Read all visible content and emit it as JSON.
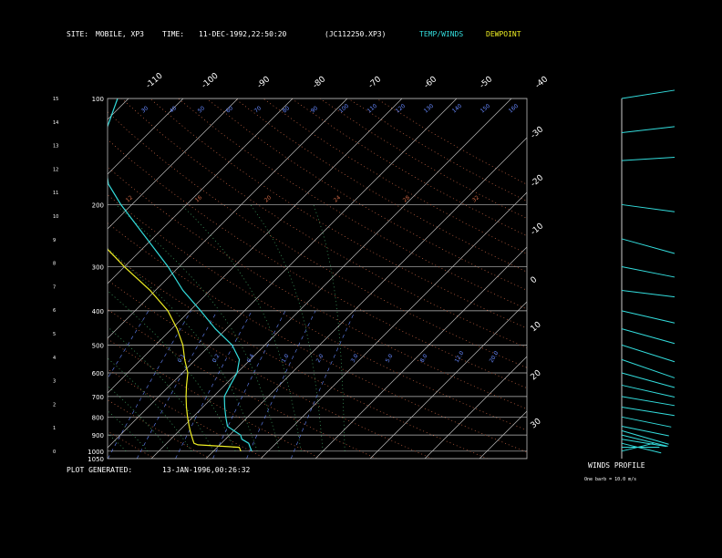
{
  "header": {
    "site_label": "SITE:",
    "site_value": "MOBILE, XP3",
    "time_label": "TIME:",
    "time_value": "11-DEC-1992,22:50:20",
    "file_value": "(JC112250.XP3)",
    "legend_temp": "TEMP/WINDS",
    "legend_dew": "DEWPOINT"
  },
  "footer": {
    "generated_label": "PLOT GENERATED:",
    "generated_value": "13-JAN-1996,00:26:32",
    "winds_title": "WINDS PROFILE",
    "winds_note": "One barb = 10.0 m/s"
  },
  "colors": {
    "temp": "#33dddd",
    "dew": "#eeee22",
    "isobar": "#bbbbbb",
    "isotherm": "#bbbbbb",
    "dry_adiabat": "#cc6644",
    "moist_adiabat": "#44aa66",
    "mixing_ratio": "#6688ff",
    "wind": "#33dddd"
  },
  "chart_data": {
    "type": "skew-t",
    "pressure_levels": [
      1050,
      1000,
      900,
      800,
      700,
      600,
      500,
      400,
      300,
      200,
      100
    ],
    "left_ticks_km": [
      0,
      1,
      2,
      3,
      4,
      5,
      6,
      7,
      8,
      9,
      10,
      11,
      12,
      13,
      14,
      15
    ],
    "top_temperature_labels": [
      "-110",
      "-100",
      "-90",
      "-80",
      "-70",
      "-60",
      "-50",
      "-40"
    ],
    "right_temperature_labels": [
      "-30",
      "-20",
      "-10",
      "0",
      "10",
      "20",
      "30"
    ],
    "theta_labels": [
      "160",
      "150",
      "140",
      "130",
      "120",
      "110",
      "100",
      "90",
      "80",
      "70",
      "60",
      "50",
      "40",
      "30"
    ],
    "moist_labels": [
      "12",
      "16",
      "20",
      "24",
      "28",
      "32"
    ],
    "mixing_labels": [
      "0.1",
      "0.2",
      "0.4",
      "1.0",
      "2.0",
      "3.0",
      "5.0",
      "8.0",
      "12.0",
      "20.0"
    ],
    "temperature": {
      "p": [
        1000,
        975,
        950,
        925,
        900,
        875,
        850,
        800,
        750,
        700,
        650,
        600,
        550,
        500,
        450,
        400,
        350,
        300,
        250,
        200,
        175,
        150,
        125,
        100
      ],
      "t": [
        17,
        16,
        15,
        13,
        12,
        10,
        8,
        6,
        4,
        2,
        1,
        0,
        -2,
        -6,
        -12,
        -18,
        -25,
        -32,
        -41,
        -52,
        -58,
        -63,
        -68,
        -72
      ]
    },
    "dewpoint": {
      "p": [
        1000,
        975,
        960,
        950,
        925,
        900,
        875,
        850,
        800,
        750,
        700,
        650,
        600,
        550,
        500,
        450,
        400,
        350,
        300,
        250,
        200,
        175,
        150,
        125,
        100
      ],
      "td": [
        15,
        14,
        6,
        5,
        4,
        3,
        2,
        1,
        -1,
        -3,
        -5,
        -7,
        -9,
        -12,
        -15,
        -19,
        -24,
        -31,
        -40,
        -50,
        -60,
        -66,
        -72,
        -78,
        -84
      ]
    },
    "winds": {
      "p": [
        1000,
        975,
        950,
        925,
        900,
        875,
        850,
        800,
        750,
        700,
        650,
        600,
        550,
        500,
        450,
        400,
        350,
        300,
        250,
        200,
        150,
        125,
        100
      ],
      "direction_deg": [
        300,
        270,
        240,
        250,
        240,
        235,
        245,
        245,
        250,
        250,
        245,
        240,
        235,
        240,
        245,
        250,
        260,
        255,
        250,
        260,
        275,
        280,
        285
      ],
      "speed_ms": [
        5,
        8,
        12,
        15,
        18,
        20,
        18,
        20,
        22,
        25,
        28,
        30,
        35,
        38,
        40,
        42,
        45,
        50,
        55,
        52,
        45,
        40,
        35
      ]
    }
  }
}
